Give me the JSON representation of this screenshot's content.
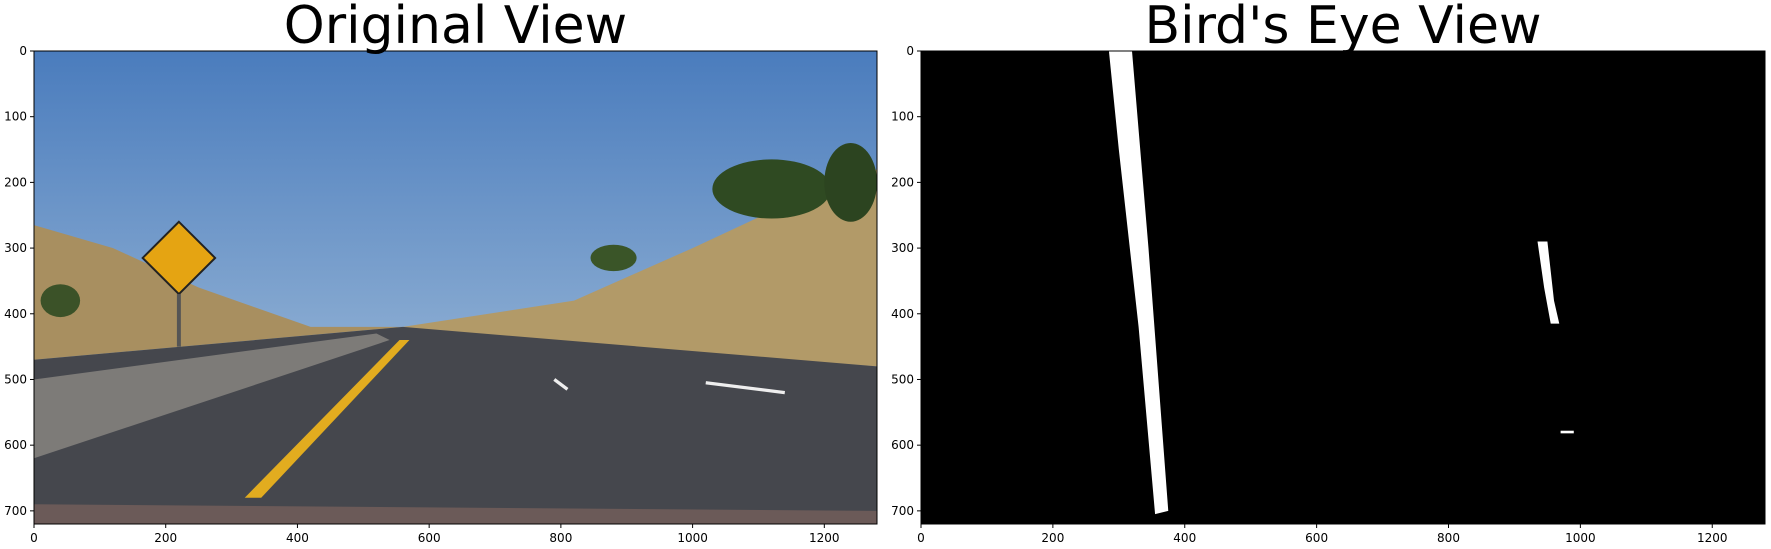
{
  "chart_data": [
    {
      "type": "image",
      "title": "Original View",
      "xlim": [
        0,
        1280
      ],
      "ylim": [
        720,
        0
      ],
      "xticks": [
        0,
        200,
        400,
        600,
        800,
        1000,
        1200
      ],
      "yticks": [
        0,
        100,
        200,
        300,
        400,
        500,
        600,
        700
      ]
    },
    {
      "type": "image",
      "title": "Bird's Eye View",
      "xlim": [
        0,
        1280
      ],
      "ylim": [
        720,
        0
      ],
      "xticks": [
        0,
        200,
        400,
        600,
        800,
        1000,
        1200
      ],
      "yticks": [
        0,
        100,
        200,
        300,
        400,
        500,
        600,
        700
      ]
    }
  ]
}
